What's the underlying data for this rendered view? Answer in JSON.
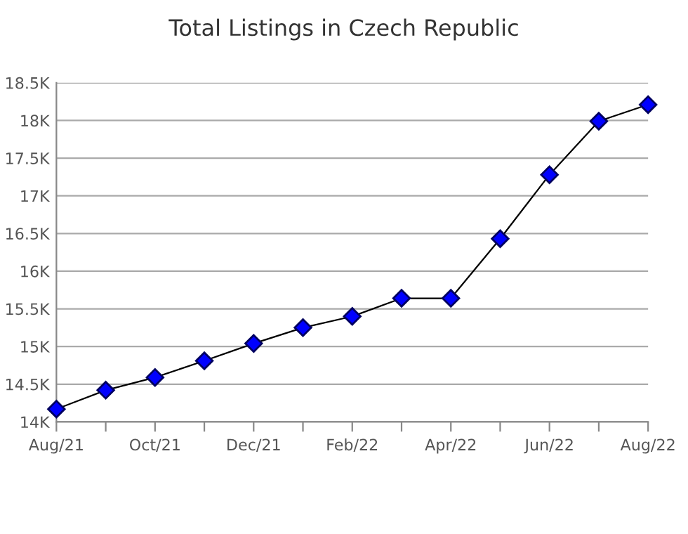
{
  "chart_data": {
    "type": "line",
    "title": "Total Listings in Czech Republic",
    "categories": [
      "Aug/21",
      null,
      "Oct/21",
      null,
      "Dec/21",
      null,
      "Feb/22",
      null,
      "Apr/22",
      null,
      "Jun/22",
      null,
      "Aug/22"
    ],
    "series": [
      {
        "color": "#0000ff",
        "values": [
          14170,
          14420,
          14590,
          14810,
          15040,
          15250,
          15400,
          15640,
          15640,
          16430,
          17280,
          17990,
          18210
        ]
      }
    ],
    "ylim": [
      14000,
      18500
    ],
    "yticks": [
      {
        "value": 14000,
        "label": "14K"
      },
      {
        "value": 14500,
        "label": "14.5K"
      },
      {
        "value": 15000,
        "label": "15K"
      },
      {
        "value": 15500,
        "label": "15.5K"
      },
      {
        "value": 16000,
        "label": "16K"
      },
      {
        "value": 16500,
        "label": "16.5K"
      },
      {
        "value": 17000,
        "label": "17K"
      },
      {
        "value": 17500,
        "label": "17.5K"
      },
      {
        "value": 18000,
        "label": "18K"
      },
      {
        "value": 18500,
        "label": "18.5K"
      }
    ],
    "grid": "y",
    "marker": "diamond",
    "line_style": "solid"
  }
}
